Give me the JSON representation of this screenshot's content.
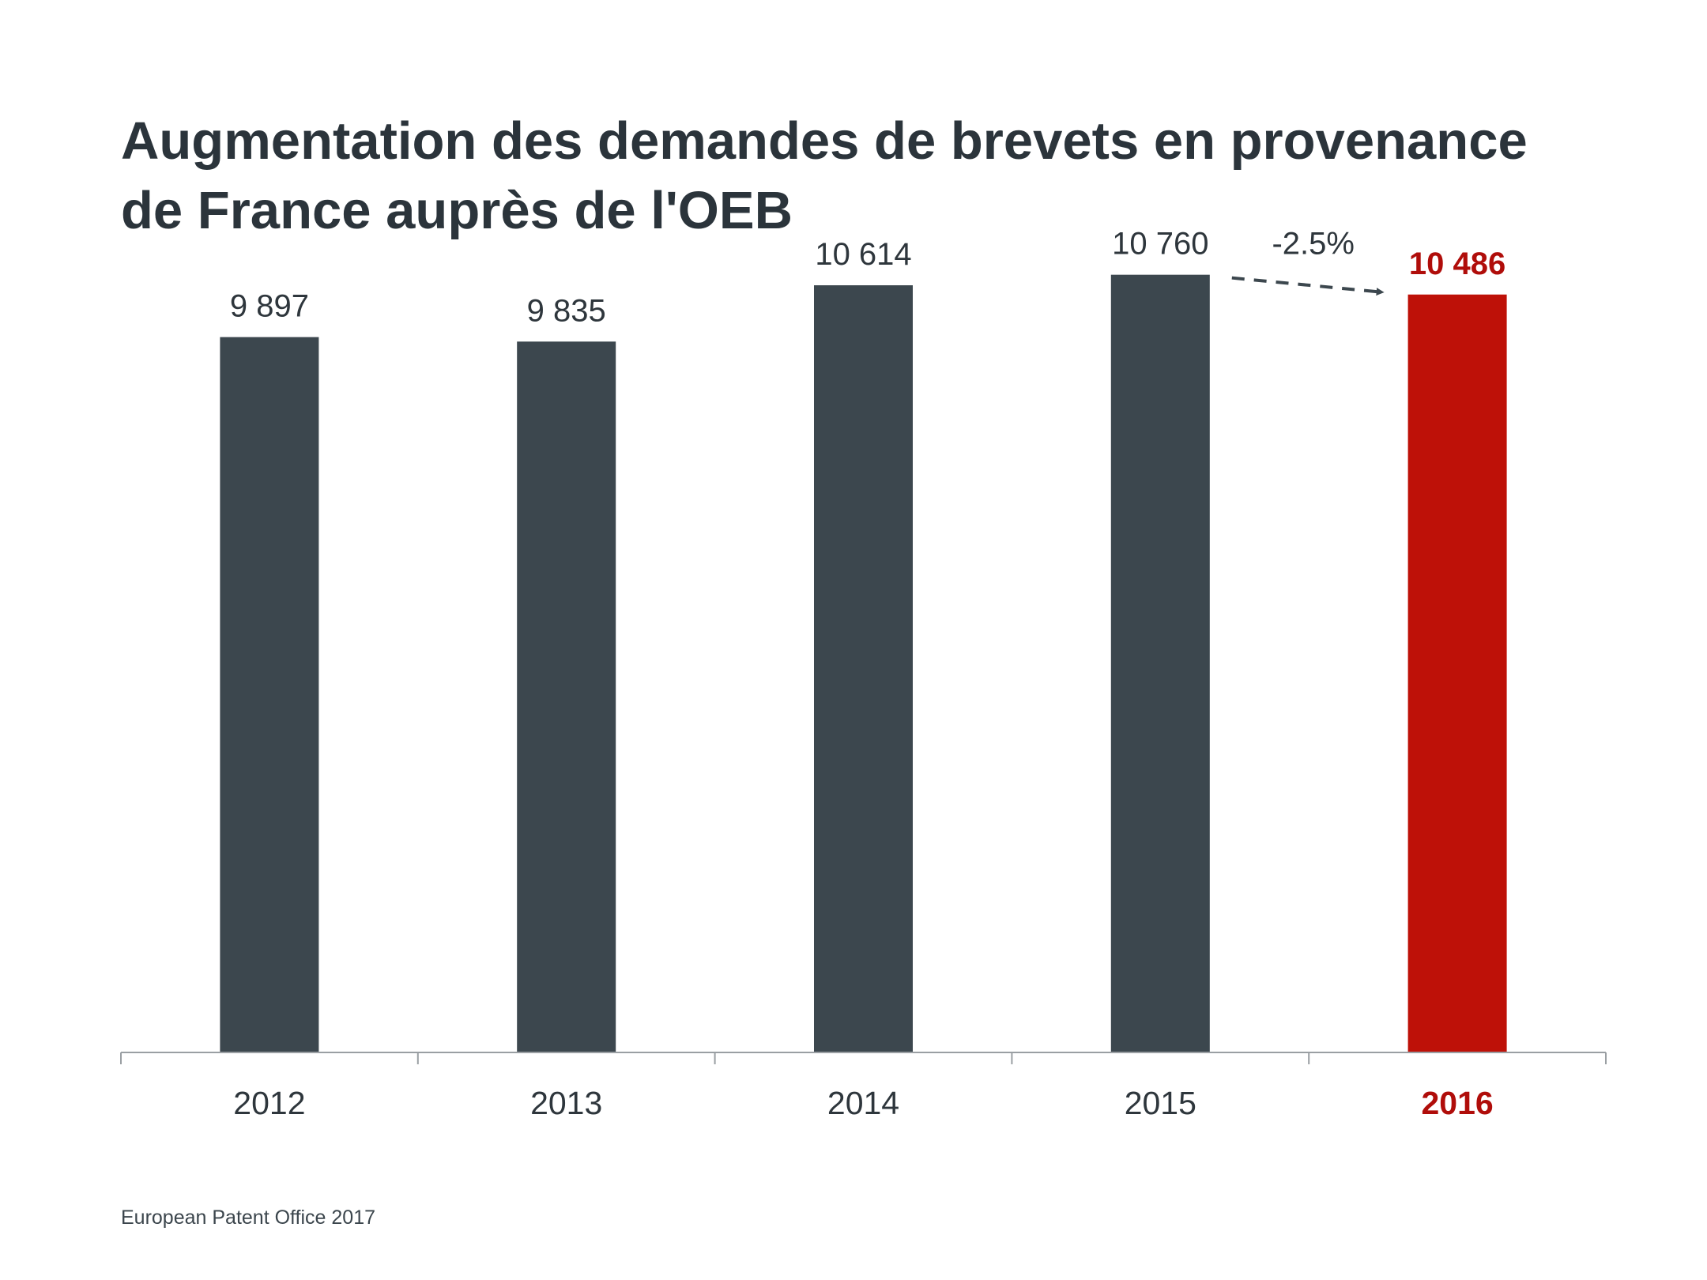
{
  "title_lines": [
    "Augmentation des demandes de brevets en provenance",
    "de France auprès de l'OEB"
  ],
  "source": "European Patent Office 2017",
  "colors": {
    "bar_default": "#3c474e",
    "bar_highlight": "#be1108",
    "label_default": "#2e363c",
    "label_highlight": "#b00d0a",
    "axis": "#9a9fa3",
    "arrow": "#3c474e"
  },
  "chart_data": {
    "type": "bar",
    "categories": [
      "2012",
      "2013",
      "2014",
      "2015",
      "2016"
    ],
    "values": [
      9897,
      9835,
      10614,
      10760,
      10486
    ],
    "value_labels": [
      "9 897",
      "9 835",
      "10 614",
      "10 760",
      "10 486"
    ],
    "highlight_index": 4,
    "ylim": [
      0,
      11500
    ],
    "grid": false,
    "legend": "none",
    "xlabel": "",
    "ylabel": "",
    "annotations": [
      {
        "text": "-2.5%",
        "from_category": "2015",
        "to_category": "2016",
        "style": "dashed-arrow"
      }
    ]
  }
}
